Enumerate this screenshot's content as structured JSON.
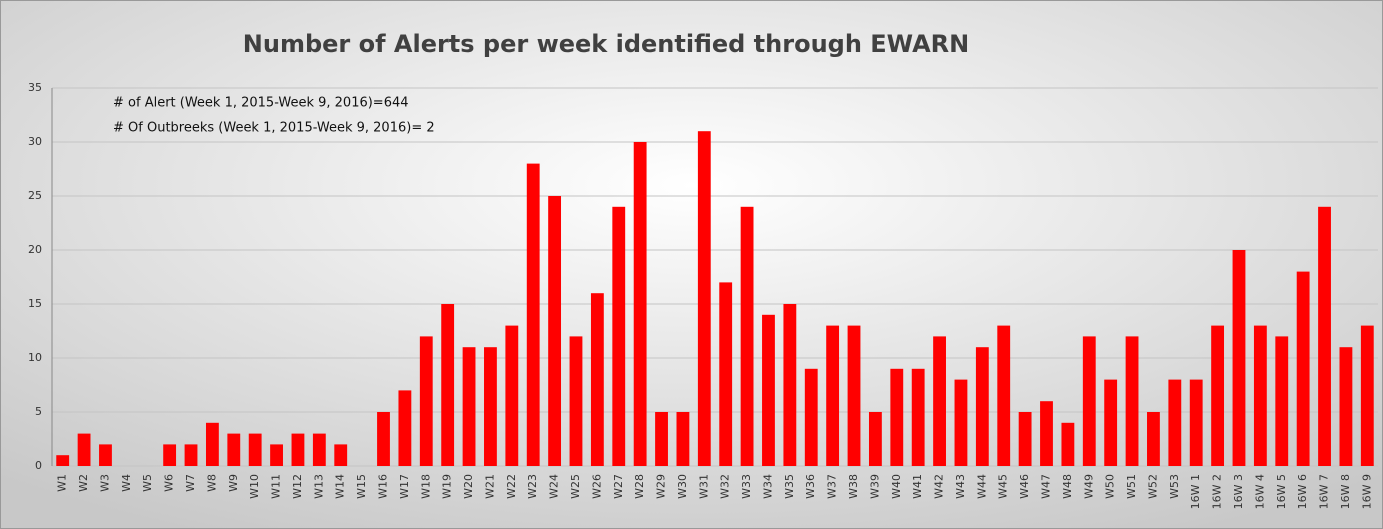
{
  "chart_data": {
    "type": "bar",
    "title": "Number of Alerts per week identified through EWARN",
    "annotations": [
      "# of Alert (Week 1, 2015-Week 9, 2016)=644",
      "# Of Outbreeks (Week 1, 2015-Week 9, 2016)= 2"
    ],
    "categories": [
      "W1",
      "W2",
      "W3",
      "W4",
      "W5",
      "W6",
      "W7",
      "W8",
      "W9",
      "W10",
      "W11",
      "W12",
      "W13",
      "W14",
      "W15",
      "W16",
      "W17",
      "W18",
      "W19",
      "W20",
      "W21",
      "W22",
      "W23",
      "W24",
      "W25",
      "W26",
      "W27",
      "W28",
      "W29",
      "W30",
      "W31",
      "W32",
      "W33",
      "W34",
      "W35",
      "W36",
      "W37",
      "W38",
      "W39",
      "W40",
      "W41",
      "W42",
      "W43",
      "W44",
      "W45",
      "W46",
      "W47",
      "W48",
      "W49",
      "W50",
      "W51",
      "W52",
      "W53",
      "16W 1",
      "16W 2",
      "16W 3",
      "16W 4",
      "16W 5",
      "16W 6",
      "16W 7",
      "16W 8",
      "16W 9"
    ],
    "values": [
      1,
      3,
      2,
      0,
      0,
      2,
      2,
      4,
      3,
      3,
      2,
      3,
      3,
      2,
      0,
      5,
      7,
      12,
      15,
      11,
      11,
      13,
      28,
      25,
      12,
      16,
      24,
      30,
      5,
      5,
      31,
      17,
      24,
      14,
      15,
      9,
      13,
      13,
      5,
      9,
      9,
      12,
      8,
      11,
      13,
      5,
      6,
      4,
      12,
      8,
      12,
      5,
      8,
      8,
      13,
      20,
      13,
      12,
      18,
      24,
      11,
      13
    ],
    "color": "#ff0000",
    "ylim": [
      0,
      35
    ],
    "yticks": [
      0,
      5,
      10,
      15,
      20,
      25,
      30,
      35
    ],
    "grid": true
  }
}
